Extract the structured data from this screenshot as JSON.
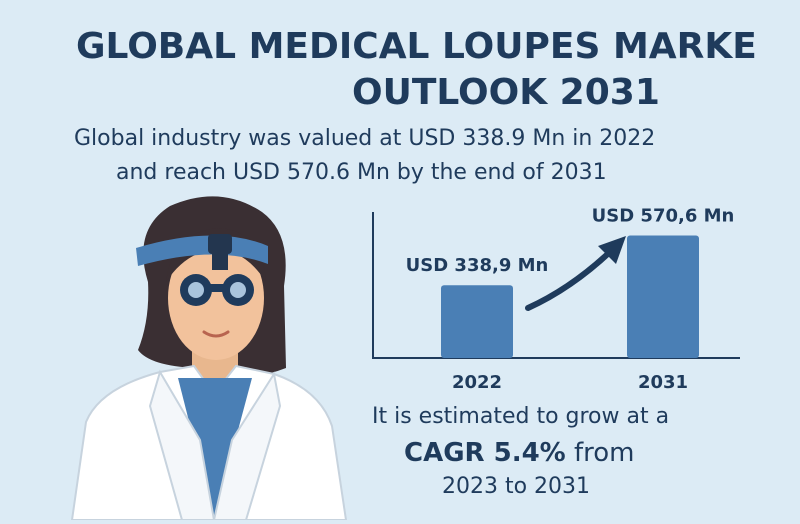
{
  "header": {
    "title_line1": "GLOBAL MEDICAL LOUPES MARKE",
    "title_line2": "OUTLOOK 2031",
    "subtitle_line1": "Global industry was valued at USD 338.9 Mn in 2022",
    "subtitle_line2": "and reach USD 570.6 Mn by the end of 2031"
  },
  "footer": {
    "line1": "It is estimated to grow at a",
    "cagr_label": "CAGR 5.4%",
    "from_text": "from",
    "line3": "2023 to 2031"
  },
  "colors": {
    "background": "#dcebf5",
    "bar": "#4a7fb5",
    "text": "#1f3b5c"
  },
  "chart_data": {
    "type": "bar",
    "title": "",
    "xlabel": "",
    "ylabel": "",
    "categories": [
      "2022",
      "2031"
    ],
    "values": [
      338.9,
      570.6
    ],
    "data_labels": [
      "USD 338,9 Mn",
      "USD 570,6 Mn"
    ],
    "ylim": [
      0,
      680
    ],
    "grid": false,
    "legend": "none",
    "annotation": "arrow-up-right"
  }
}
